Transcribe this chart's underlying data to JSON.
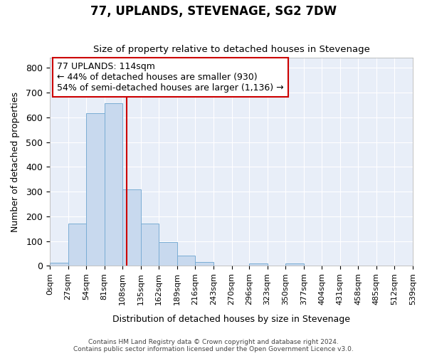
{
  "title": "77, UPLANDS, STEVENAGE, SG2 7DW",
  "subtitle": "Size of property relative to detached houses in Stevenage",
  "xlabel": "Distribution of detached houses by size in Stevenage",
  "ylabel": "Number of detached properties",
  "bar_color": "#c8d9ee",
  "bar_edge_color": "#7aadd4",
  "background_color": "#e8eef8",
  "grid_color": "#ffffff",
  "bins": [
    0,
    27,
    54,
    81,
    108,
    135,
    162,
    189,
    216,
    243,
    270,
    296,
    323,
    350,
    377,
    404,
    431,
    458,
    485,
    512,
    539
  ],
  "bin_labels": [
    "0sqm",
    "27sqm",
    "54sqm",
    "81sqm",
    "108sqm",
    "135sqm",
    "162sqm",
    "189sqm",
    "216sqm",
    "243sqm",
    "270sqm",
    "296sqm",
    "323sqm",
    "350sqm",
    "377sqm",
    "404sqm",
    "431sqm",
    "458sqm",
    "485sqm",
    "512sqm",
    "539sqm"
  ],
  "values": [
    12,
    172,
    618,
    656,
    308,
    172,
    97,
    40,
    15,
    0,
    0,
    10,
    0,
    10,
    0,
    0,
    0,
    0,
    0,
    0
  ],
  "vline_x": 114,
  "vline_color": "#cc0000",
  "annotation_text": "77 UPLANDS: 114sqm\n← 44% of detached houses are smaller (930)\n54% of semi-detached houses are larger (1,136) →",
  "annotation_box_color": "#ffffff",
  "annotation_box_edge_color": "#cc0000",
  "ylim": [
    0,
    840
  ],
  "yticks": [
    0,
    100,
    200,
    300,
    400,
    500,
    600,
    700,
    800
  ],
  "footer_line1": "Contains HM Land Registry data © Crown copyright and database right 2024.",
  "footer_line2": "Contains public sector information licensed under the Open Government Licence v3.0."
}
